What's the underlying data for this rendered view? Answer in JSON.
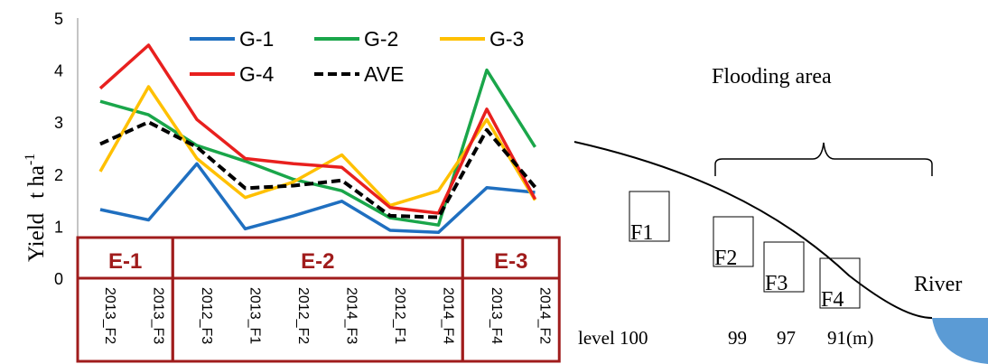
{
  "chart_data": {
    "type": "line",
    "categories": [
      "2013_F2",
      "2013_F3",
      "2012_F3",
      "2013_F1",
      "2012_F2",
      "2014_F3",
      "2012_F1",
      "2014_F4",
      "2013_F4",
      "2014_F2"
    ],
    "ylabel": "Yield",
    "ylabel_unit_base": "t ha",
    "ylabel_unit_sup": "-1",
    "yticks": [
      "0",
      "1",
      "2",
      "3",
      "4",
      "5"
    ],
    "ylim": [
      0,
      5
    ],
    "grid": false,
    "legend_position": "top",
    "series": [
      {
        "name": "G-1",
        "color": "#1f6fc0",
        "dashed": false,
        "values": [
          1.32,
          1.12,
          2.2,
          0.95,
          1.2,
          1.48,
          0.92,
          0.88,
          1.74,
          1.65
        ]
      },
      {
        "name": "G-2",
        "color": "#1aa64a",
        "dashed": false,
        "values": [
          3.4,
          3.14,
          2.55,
          2.25,
          1.9,
          1.68,
          1.16,
          1.02,
          4.0,
          2.52
        ]
      },
      {
        "name": "G-3",
        "color": "#ffc000",
        "dashed": false,
        "values": [
          2.05,
          3.68,
          2.3,
          1.55,
          1.85,
          2.37,
          1.4,
          1.68,
          3.05,
          1.5
        ]
      },
      {
        "name": "G-4",
        "color": "#e8201e",
        "dashed": false,
        "values": [
          3.65,
          4.48,
          3.05,
          2.3,
          2.2,
          2.13,
          1.36,
          1.25,
          3.25,
          1.52
        ]
      },
      {
        "name": "AVE",
        "color": "#000000",
        "dashed": true,
        "values": [
          2.58,
          3.0,
          2.52,
          1.73,
          1.78,
          1.88,
          1.2,
          1.17,
          2.85,
          1.75
        ]
      }
    ],
    "groups": [
      {
        "label": "E-1"
      },
      {
        "label": "E-2"
      },
      {
        "label": "E-3"
      }
    ]
  },
  "diagram": {
    "title": "Flooding area",
    "fields": [
      "F1",
      "F2",
      "F3",
      "F4"
    ],
    "river_label": "River",
    "levels": [
      {
        "text": "level 100"
      },
      {
        "text": "99"
      },
      {
        "text": "97"
      },
      {
        "text": "91(m)"
      }
    ],
    "water_color": "#5b9bd5"
  }
}
